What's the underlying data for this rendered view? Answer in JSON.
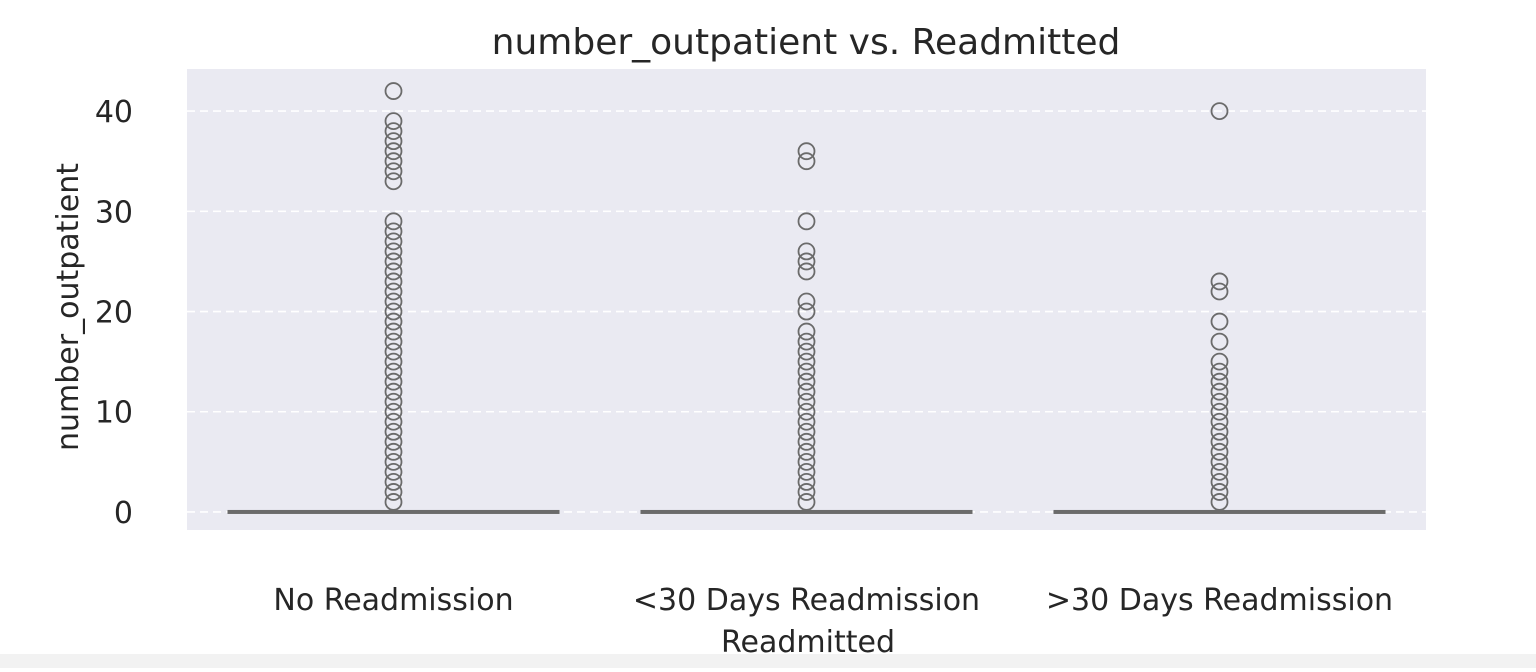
{
  "chart_data": {
    "type": "boxplot",
    "title": "number_outpatient vs. Readmitted",
    "xlabel": "Readmitted",
    "ylabel": "number_outpatient",
    "categories": [
      "No Readmission",
      "<30 Days Readmission",
      ">30 Days Readmission"
    ],
    "ylim": [
      -1.8,
      44.2
    ],
    "yticks": [
      0,
      10,
      20,
      30,
      40
    ],
    "grid": true,
    "colors": {
      "plot_bg": "#eaeaf2",
      "grid": "#ffffff",
      "box_line": "#6b6b6b",
      "flier": "#6b6b6b",
      "text": "#262626"
    },
    "boxes": [
      {
        "category": "No Readmission",
        "q1": 0,
        "median": 0,
        "q3": 0,
        "whisker_low": 0,
        "whisker_high": 0,
        "outliers": [
          1,
          2,
          3,
          4,
          5,
          6,
          7,
          8,
          9,
          10,
          11,
          12,
          13,
          14,
          15,
          16,
          17,
          18,
          19,
          20,
          21,
          22,
          23,
          24,
          25,
          26,
          27,
          28,
          29,
          33,
          34,
          35,
          36,
          37,
          38,
          39,
          42
        ]
      },
      {
        "category": "<30 Days Readmission",
        "q1": 0,
        "median": 0,
        "q3": 0,
        "whisker_low": 0,
        "whisker_high": 0,
        "outliers": [
          1,
          2,
          3,
          4,
          5,
          6,
          7,
          8,
          9,
          10,
          11,
          12,
          13,
          14,
          15,
          16,
          17,
          18,
          20,
          21,
          24,
          25,
          26,
          29,
          35,
          36
        ]
      },
      {
        "category": ">30 Days Readmission",
        "q1": 0,
        "median": 0,
        "q3": 0,
        "whisker_low": 0,
        "whisker_high": 0,
        "outliers": [
          1,
          2,
          3,
          4,
          5,
          6,
          7,
          8,
          9,
          10,
          11,
          12,
          13,
          14,
          15,
          17,
          19,
          22,
          23,
          40
        ]
      }
    ]
  }
}
